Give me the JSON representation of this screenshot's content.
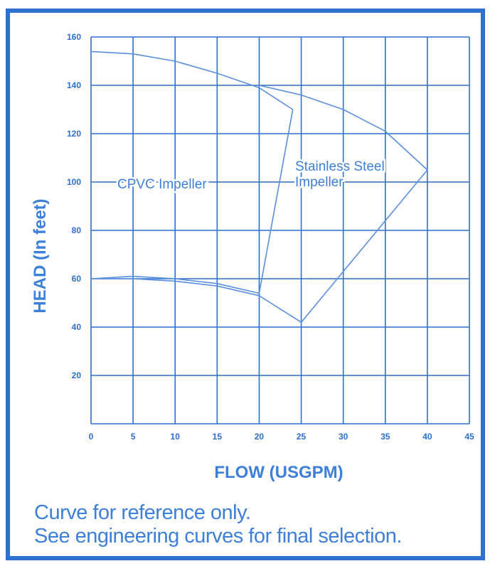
{
  "chart_data": {
    "type": "line",
    "xlabel": "FLOW (USGPM)",
    "ylabel": "HEAD (In feet)",
    "xlim": [
      0,
      45
    ],
    "ylim": [
      0,
      160
    ],
    "xticks": [
      0,
      5,
      10,
      15,
      20,
      25,
      30,
      35,
      40,
      45
    ],
    "yticks": [
      20,
      40,
      60,
      80,
      100,
      120,
      140,
      160
    ],
    "grid": true,
    "series": [
      {
        "name": "CPVC Impeller",
        "upper_curve": {
          "x": [
            0,
            5,
            10,
            15,
            20,
            24
          ],
          "y": [
            154,
            153,
            150,
            145,
            139,
            130
          ]
        },
        "lower_curve": {
          "x": [
            0,
            5,
            10,
            15,
            20
          ],
          "y": [
            60,
            61,
            60,
            58,
            54
          ]
        },
        "boundary_line": {
          "x": [
            24,
            20
          ],
          "y": [
            130,
            54
          ]
        }
      },
      {
        "name": "Stainless Steel Impeller",
        "upper_curve": {
          "x": [
            20,
            25,
            30,
            35,
            40
          ],
          "y": [
            140,
            136,
            130,
            121,
            105
          ]
        },
        "lower_curve": {
          "x": [
            0,
            5,
            10,
            15,
            20,
            25
          ],
          "y": [
            60,
            60,
            59,
            57,
            53,
            42
          ]
        },
        "boundary_line": {
          "x": [
            40,
            25
          ],
          "y": [
            105,
            42
          ]
        }
      }
    ],
    "annotations": [
      {
        "text": "CPVC Impeller",
        "series": 0
      },
      {
        "text": "Stainless Steel",
        "series": 1
      },
      {
        "text": "Impeller",
        "series": 1
      }
    ]
  },
  "notes": {
    "line1": "Curve for reference only.",
    "line2": "See engineering curves for final selection."
  },
  "colors": {
    "border": "#2f6fd0",
    "grid": "#2f6fd0",
    "curve": "#5b8fde",
    "text": "#3d7fd9",
    "tick": "#2d6fcc"
  }
}
